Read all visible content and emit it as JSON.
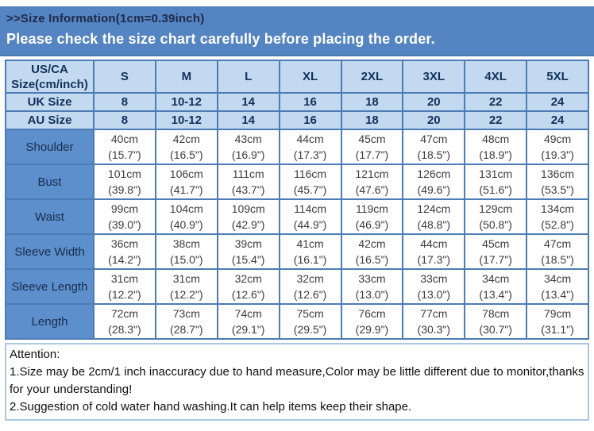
{
  "banner": {
    "title": ">>Size Information(1cm=0.39inch)",
    "subtitle": "Please check the size chart carefully before placing the order."
  },
  "colors": {
    "banner_bg": "#5584c2",
    "header_cell_bg": "#c2d9f0",
    "label_cell_bg": "#5c8fcb",
    "table_border": "#4d7cb5",
    "banner_title_text": "#1e2a4a",
    "banner_subtitle_text": "#ffffff",
    "header_text": "#13305a",
    "data_text": "#3c3c3c"
  },
  "table": {
    "corner": {
      "line1": "US/CA",
      "line2": "Size(cm/inch)"
    },
    "columns": [
      "S",
      "M",
      "L",
      "XL",
      "2XL",
      "3XL",
      "4XL",
      "5XL"
    ],
    "uk_row": {
      "label": "UK Size",
      "values": [
        "8",
        "10-12",
        "14",
        "16",
        "18",
        "20",
        "22",
        "24"
      ]
    },
    "au_row": {
      "label": "AU Size",
      "values": [
        "8",
        "10-12",
        "14",
        "16",
        "18",
        "20",
        "22",
        "24"
      ]
    },
    "rows": [
      {
        "label": "Shoulder",
        "cm": [
          "40cm",
          "42cm",
          "43cm",
          "44cm",
          "45cm",
          "47cm",
          "48cm",
          "49cm"
        ],
        "in": [
          "(15.7\")",
          "(16.5\")",
          "(16.9\")",
          "(17.3\")",
          "(17.7\")",
          "(18.5\")",
          "(18.9\")",
          "(19.3\")"
        ]
      },
      {
        "label": "Bust",
        "cm": [
          "101cm",
          "106cm",
          "111cm",
          "116cm",
          "121cm",
          "126cm",
          "131cm",
          "136cm"
        ],
        "in": [
          "(39.8\")",
          "(41.7\")",
          "(43.7\")",
          "(45.7\")",
          "(47.6\")",
          "(49.6\")",
          "(51.6\")",
          "(53.5\")"
        ]
      },
      {
        "label": "Waist",
        "cm": [
          "99cm",
          "104cm",
          "109cm",
          "114cm",
          "119cm",
          "124cm",
          "129cm",
          "134cm"
        ],
        "in": [
          "(39.0\")",
          "(40.9\")",
          "(42.9\")",
          "(44.9\")",
          "(46.9\")",
          "(48.8\")",
          "(50.8\")",
          "(52.8\")"
        ]
      },
      {
        "label": "Sleeve Width",
        "cm": [
          "36cm",
          "38cm",
          "39cm",
          "41cm",
          "42cm",
          "44cm",
          "45cm",
          "47cm"
        ],
        "in": [
          "(14.2\")",
          "(15.0\")",
          "(15.4\")",
          "(16.1\")",
          "(16.5\")",
          "(17.3\")",
          "(17.7\")",
          "(18.5\")"
        ]
      },
      {
        "label": "Sleeve Length",
        "cm": [
          "31cm",
          "31cm",
          "32cm",
          "32cm",
          "33cm",
          "33cm",
          "34cm",
          "34cm"
        ],
        "in": [
          "(12.2\")",
          "(12.2\")",
          "(12.6\")",
          "(12.6\")",
          "(13.0\")",
          "(13.0\")",
          "(13.4\")",
          "(13.4\")"
        ]
      },
      {
        "label": "Length",
        "cm": [
          "72cm",
          "73cm",
          "74cm",
          "75cm",
          "76cm",
          "77cm",
          "78cm",
          "79cm"
        ],
        "in": [
          "(28.3\")",
          "(28.7\")",
          "(29.1\")",
          "(29.5\")",
          "(29.9\")",
          "(30.3\")",
          "(30.7\")",
          "(31.1\")"
        ]
      }
    ]
  },
  "attention": {
    "title": "Attention:",
    "note1": "1.Size may be 2cm/1 inch inaccuracy due to hand measure,Color may be little different due to monitor,thanks for your understanding!",
    "note2": "2.Suggestion of cold water hand washing.It can help items keep their shape."
  }
}
